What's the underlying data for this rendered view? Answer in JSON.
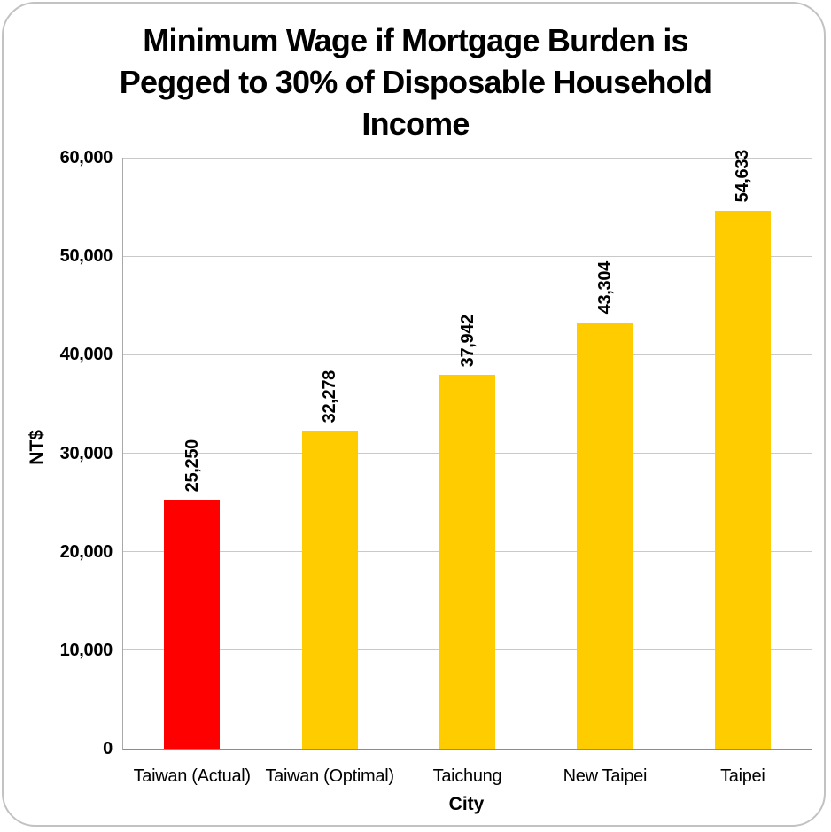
{
  "frame": {
    "border_color": "#c2c2c2",
    "background_color": "#ffffff"
  },
  "chart_data": {
    "type": "bar",
    "title": "Minimum Wage if Mortgage Burden is\nPegged to 30% of Disposable Household\nIncome",
    "xlabel": "City",
    "ylabel": "NT$",
    "categories": [
      "Taiwan (Actual)",
      "Taiwan (Optimal)",
      "Taichung",
      "New Taipei",
      "Taipei"
    ],
    "values": [
      25250,
      32278,
      37942,
      43304,
      54633
    ],
    "value_labels": [
      "25,250",
      "32,278",
      "37,942",
      "43,304",
      "54,633"
    ],
    "bar_colors": [
      "#ff0000",
      "#ffcc00",
      "#ffcc00",
      "#ffcc00",
      "#ffcc00"
    ],
    "highlight_index": 0,
    "highlight_color": "#ff0000",
    "default_bar_color": "#ffcc00",
    "ylim": [
      0,
      60000
    ],
    "ytick_values": [
      0,
      10000,
      20000,
      30000,
      40000,
      50000,
      60000
    ],
    "ytick_labels": [
      "0",
      "10,000",
      "20,000",
      "30,000",
      "40,000",
      "50,000",
      "60,000"
    ],
    "grid": true,
    "gridline_color": "#c9c9c9",
    "axis_line_color": "#8c8c8c",
    "legend": "none",
    "value_label_rotation_deg": 90,
    "x_tick_rotation_deg": 0
  }
}
